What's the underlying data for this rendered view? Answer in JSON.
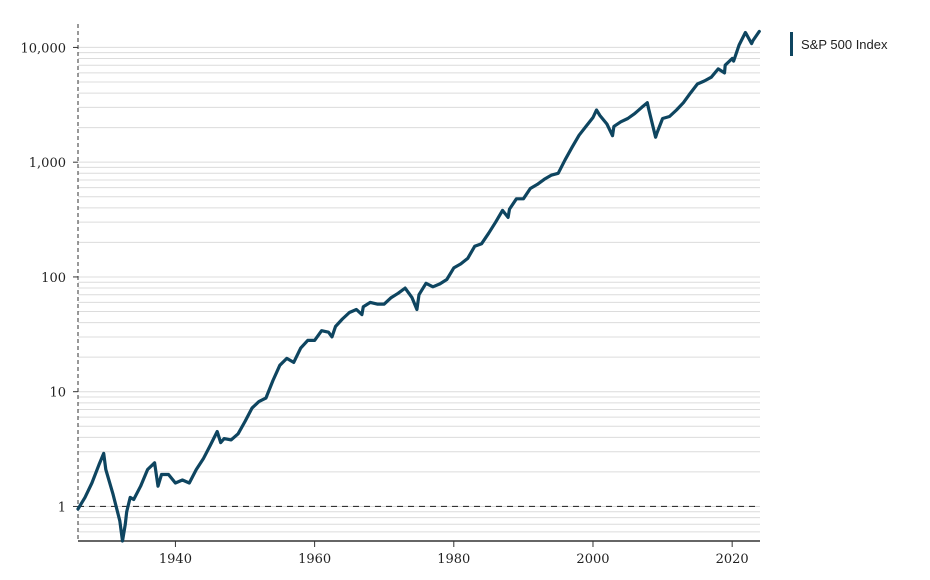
{
  "chart_data": {
    "type": "line",
    "title": "",
    "xlabel": "",
    "ylabel": "",
    "y_scale": "log",
    "xlim": [
      1926,
      2024
    ],
    "ylim": [
      0.5,
      16000
    ],
    "x_ticks": [
      {
        "value": 1940,
        "label": "1940"
      },
      {
        "value": 1960,
        "label": "1960"
      },
      {
        "value": 1980,
        "label": "1980"
      },
      {
        "value": 2000,
        "label": "2000"
      },
      {
        "value": 2020,
        "label": "2020"
      }
    ],
    "y_ticks": [
      {
        "value": 1,
        "label": "1"
      },
      {
        "value": 10,
        "label": "10"
      },
      {
        "value": 100,
        "label": "100"
      },
      {
        "value": 1000,
        "label": "1,000"
      },
      {
        "value": 10000,
        "label": "10,000"
      }
    ],
    "grid": "horizontal minor (log)",
    "reference_line": {
      "y": 1,
      "style": "dashed"
    },
    "legend": {
      "position": "top-right"
    },
    "series": [
      {
        "name": "S&P 500 Index",
        "color": "#0e4560",
        "x": [
          1926,
          1927,
          1928,
          1929,
          1929.7,
          1930,
          1931,
          1932,
          1932.4,
          1932.8,
          1933,
          1933.5,
          1934,
          1935,
          1936,
          1937,
          1937.5,
          1938,
          1939,
          1940,
          1941,
          1942,
          1943,
          1944,
          1945,
          1946,
          1946.5,
          1947,
          1948,
          1949,
          1950,
          1951,
          1952,
          1953,
          1954,
          1955,
          1956,
          1957,
          1958,
          1959,
          1960,
          1961,
          1962,
          1962.5,
          1963,
          1964,
          1965,
          1966,
          1966.8,
          1967,
          1968,
          1969,
          1970,
          1971,
          1972,
          1973,
          1974,
          1974.7,
          1975,
          1976,
          1977,
          1978,
          1979,
          1980,
          1981,
          1982,
          1983,
          1984,
          1985,
          1986,
          1987,
          1987.8,
          1988,
          1989,
          1990,
          1991,
          1992,
          1993,
          1994,
          1995,
          1996,
          1997,
          1998,
          1999,
          2000,
          2000.5,
          2001,
          2002,
          2002.8,
          2003,
          2004,
          2005,
          2006,
          2007,
          2007.8,
          2008,
          2009,
          2009.2,
          2010,
          2011,
          2012,
          2013,
          2014,
          2015,
          2016,
          2017,
          2018,
          2018.9,
          2019,
          2020,
          2020.2,
          2021,
          2021.9,
          2022,
          2022.8,
          2023,
          2023.9
        ],
        "values": [
          0.95,
          1.2,
          1.6,
          2.3,
          2.9,
          2.1,
          1.3,
          0.75,
          0.5,
          0.7,
          0.9,
          1.2,
          1.15,
          1.5,
          2.1,
          2.4,
          1.5,
          1.9,
          1.9,
          1.6,
          1.7,
          1.6,
          2.1,
          2.6,
          3.4,
          4.5,
          3.6,
          3.9,
          3.8,
          4.3,
          5.5,
          7.2,
          8.2,
          8.8,
          12.5,
          17,
          19.5,
          18,
          24,
          28,
          28,
          34,
          33,
          30,
          37,
          43,
          49,
          52,
          47,
          55,
          60,
          58,
          58,
          66,
          72,
          80,
          66,
          52,
          70,
          88,
          82,
          87,
          95,
          120,
          130,
          145,
          185,
          195,
          240,
          300,
          380,
          330,
          390,
          480,
          480,
          590,
          640,
          710,
          770,
          800,
          1050,
          1350,
          1720,
          2050,
          2450,
          2850,
          2550,
          2150,
          1700,
          2050,
          2250,
          2400,
          2650,
          3000,
          3300,
          2900,
          1650,
          1800,
          2400,
          2500,
          2850,
          3300,
          4000,
          4800,
          5100,
          5500,
          6500,
          6000,
          7000,
          8000,
          7600,
          10500,
          13500,
          13200,
          10800,
          11500,
          13800
        ]
      }
    ]
  }
}
